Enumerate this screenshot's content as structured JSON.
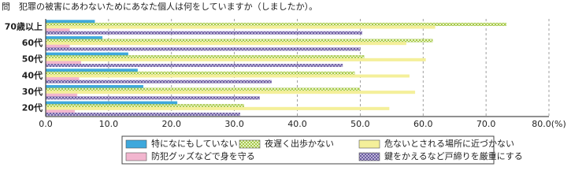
{
  "chart_data": {
    "type": "hbar",
    "title": "問　犯罪の被害にあわないためにあなた個人は何をしていますか（しましたか）。",
    "categories": [
      "70歳以上",
      "60代",
      "50代",
      "40代",
      "30代",
      "20代"
    ],
    "series": [
      {
        "name": "特になにもしていない",
        "color": "#3ea8dc",
        "values": [
          7.8,
          9.0,
          13.1,
          14.6,
          15.5,
          20.9
        ]
      },
      {
        "name": "夜遅く出歩かない",
        "color": "#a5c84a",
        "values": [
          73.2,
          61.5,
          50.6,
          49.1,
          49.9,
          31.5
        ]
      },
      {
        "name": "危ないとされる場所に近づかない",
        "color": "#f4ef9a",
        "values": [
          61.9,
          57.3,
          60.4,
          57.8,
          58.7,
          54.6
        ]
      },
      {
        "name": "防犯グッズなどで身を守る",
        "color": "#f2b6cf",
        "values": [
          3.8,
          3.8,
          5.6,
          5.3,
          5.0,
          4.6
        ]
      },
      {
        "name": "鍵をかえるなど戸締りを厳重にする",
        "color": "#8a7bb8",
        "values": [
          50.3,
          50.0,
          47.2,
          35.9,
          34.0,
          30.9
        ]
      }
    ],
    "xlim": [
      0,
      80
    ],
    "xticks": [
      {
        "value": 0,
        "label": "0.0"
      },
      {
        "value": 10,
        "label": "10.0"
      },
      {
        "value": 20,
        "label": "20.0"
      },
      {
        "value": 30,
        "label": "30.0"
      },
      {
        "value": 40,
        "label": "40.0"
      },
      {
        "value": 50,
        "label": "50.0"
      },
      {
        "value": 60,
        "label": "60.0"
      },
      {
        "value": 70,
        "label": "70.0"
      },
      {
        "value": 80,
        "label": "80.0(%)"
      }
    ],
    "grid": true
  }
}
